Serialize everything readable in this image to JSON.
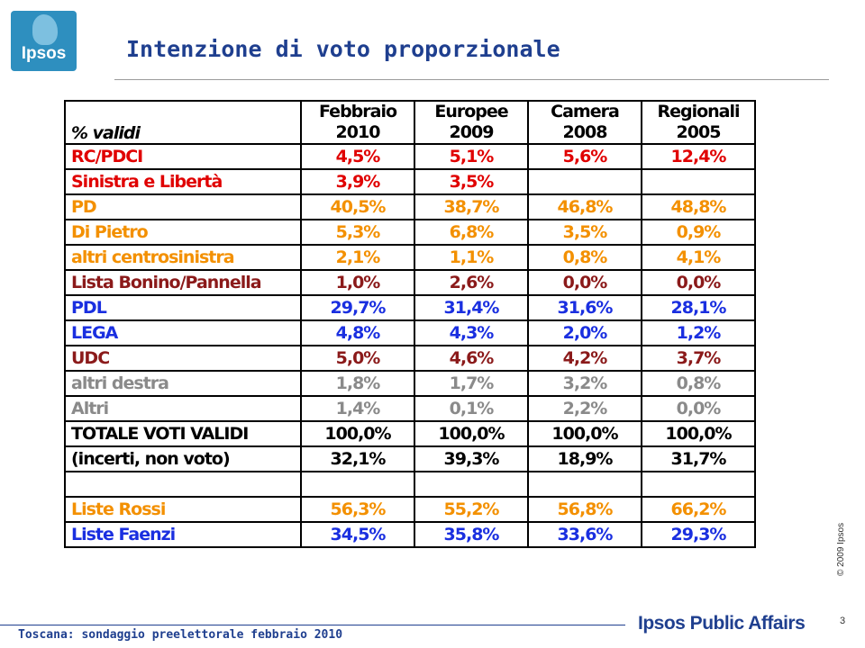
{
  "logo": {
    "text": "Ipsos"
  },
  "title": "Intenzione di voto proporzionale",
  "table": {
    "header_label": "% validi",
    "columns": [
      {
        "line1": "Febbraio",
        "line2": "2010"
      },
      {
        "line1": "Europee",
        "line2": "2009"
      },
      {
        "line1": "Camera",
        "line2": "2008"
      },
      {
        "line1": "Regionali",
        "line2": "2005"
      }
    ],
    "rows": [
      {
        "label": "RC/PDCI",
        "color": "#e00000",
        "values": [
          "4,5%",
          "5,1%",
          "5,6%",
          "12,4%"
        ]
      },
      {
        "label": "Sinistra e Libertà",
        "color": "#e00000",
        "values": [
          "3,9%",
          "3,5%",
          "",
          ""
        ]
      },
      {
        "label": "PD",
        "color": "#f39000",
        "values": [
          "40,5%",
          "38,7%",
          "46,8%",
          "48,8%"
        ]
      },
      {
        "label": "Di Pietro",
        "color": "#f39000",
        "values": [
          "5,3%",
          "6,8%",
          "3,5%",
          "0,9%"
        ]
      },
      {
        "label": "altri centrosinistra",
        "color": "#f39000",
        "values": [
          "2,1%",
          "1,1%",
          "0,8%",
          "4,1%"
        ]
      },
      {
        "label": "Lista Bonino/Pannella",
        "color": "#8b1a1a",
        "values": [
          "1,0%",
          "2,6%",
          "0,0%",
          "0,0%"
        ]
      },
      {
        "label": "PDL",
        "color": "#1a2fe0",
        "values": [
          "29,7%",
          "31,4%",
          "31,6%",
          "28,1%"
        ]
      },
      {
        "label": "LEGA",
        "color": "#1a2fe0",
        "values": [
          "4,8%",
          "4,3%",
          "2,0%",
          "1,2%"
        ]
      },
      {
        "label": "UDC",
        "color": "#8b1a1a",
        "values": [
          "5,0%",
          "4,6%",
          "4,2%",
          "3,7%"
        ]
      },
      {
        "label": "altri destra",
        "color": "#8a8a8a",
        "values": [
          "1,8%",
          "1,7%",
          "3,2%",
          "0,8%"
        ]
      },
      {
        "label": "Altri",
        "color": "#8a8a8a",
        "values": [
          "1,4%",
          "0,1%",
          "2,2%",
          "0,0%"
        ]
      },
      {
        "label": "TOTALE VOTI VALIDI",
        "color": "#000000",
        "values": [
          "100,0%",
          "100,0%",
          "100,0%",
          "100,0%"
        ]
      },
      {
        "label": "(incerti, non voto)",
        "color": "#000000",
        "values": [
          "32,1%",
          "39,3%",
          "18,9%",
          "31,7%"
        ]
      }
    ],
    "bottom_rows": [
      {
        "label": "Liste Rossi",
        "color": "#f39000",
        "values": [
          "56,3%",
          "55,2%",
          "56,8%",
          "66,2%"
        ]
      },
      {
        "label": "Liste Faenzi",
        "color": "#1a2fe0",
        "values": [
          "34,5%",
          "35,8%",
          "33,6%",
          "29,3%"
        ]
      }
    ]
  },
  "side_note": "© 2009 Ipsos",
  "page_number": "3",
  "footer": "Toscana: sondaggio preelettorale febbraio 2010",
  "brand": "Ipsos Public Affairs"
}
